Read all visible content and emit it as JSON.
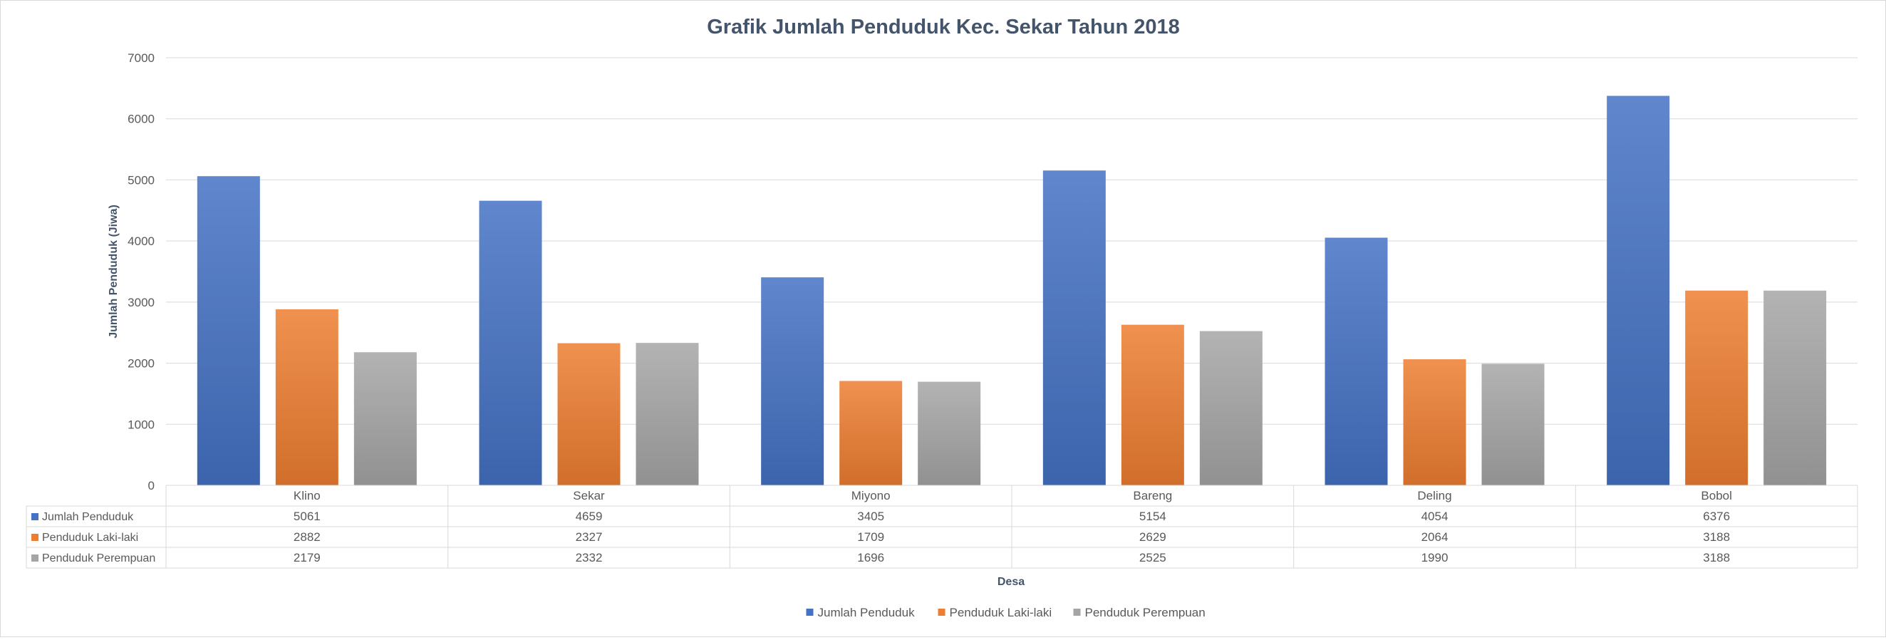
{
  "chart_data": {
    "type": "bar",
    "title": "Grafik Jumlah Penduduk Kec. Sekar Tahun 2018",
    "xlabel": "Desa",
    "ylabel": "Jumlah Penduduk (Jiwa)",
    "ylim": [
      0,
      7000
    ],
    "yticks": [
      0,
      1000,
      2000,
      3000,
      4000,
      5000,
      6000,
      7000
    ],
    "grid": true,
    "legend_position": "bottom",
    "data_table": true,
    "categories": [
      "Klino",
      "Sekar",
      "Miyono",
      "Bareng",
      "Deling",
      "Bobol"
    ],
    "series": [
      {
        "name": "Jumlah Penduduk",
        "color": "#4472c4",
        "values": [
          5061,
          4659,
          3405,
          5154,
          4054,
          6376
        ]
      },
      {
        "name": "Penduduk Laki-laki",
        "color": "#ed7d31",
        "values": [
          2882,
          2327,
          1709,
          2629,
          2064,
          3188
        ]
      },
      {
        "name": "Penduduk Perempuan",
        "color": "#a5a5a5",
        "values": [
          2179,
          2332,
          1696,
          2525,
          1990,
          3188
        ]
      }
    ]
  }
}
